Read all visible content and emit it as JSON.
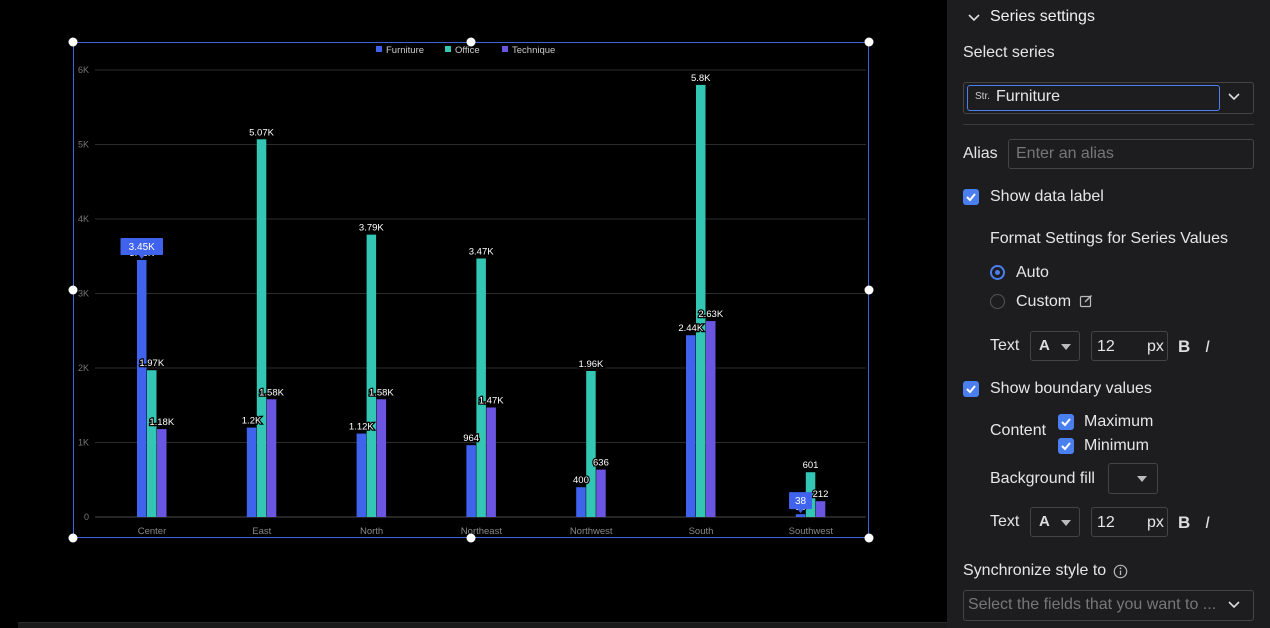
{
  "chart_data": {
    "type": "bar",
    "categories": [
      "Center",
      "East",
      "North",
      "Northeast",
      "Northwest",
      "South",
      "Southwest"
    ],
    "series": [
      {
        "name": "Furniture",
        "color": "#3f63ec",
        "values": [
          3450,
          1200,
          1120,
          964,
          400,
          2440,
          38
        ],
        "labels": [
          "3.45K",
          "1.2K",
          "1.12K",
          "964",
          "400",
          "2.44K",
          "38"
        ]
      },
      {
        "name": "Office",
        "color": "#34c6b4",
        "values": [
          1970,
          5070,
          3790,
          3470,
          1960,
          5800,
          601
        ],
        "labels": [
          "1.97K",
          "5.07K",
          "3.79K",
          "3.47K",
          "1.96K",
          "5.8K",
          "601"
        ]
      },
      {
        "name": "Technique",
        "color": "#6b56e4",
        "values": [
          1180,
          1580,
          1580,
          1470,
          636,
          2630,
          212
        ],
        "labels": [
          "1.18K",
          "1.58K",
          "1.58K",
          "1.47K",
          "636",
          "2.63K",
          "212"
        ]
      }
    ],
    "y_ticks": [
      "0",
      "1K",
      "2K",
      "3K",
      "4K",
      "5K",
      "6K"
    ],
    "ylim": [
      0,
      6000
    ],
    "legend_position": "top-center",
    "grid": true,
    "boundary_labels": {
      "max": "3.45K",
      "min": "38",
      "series": "Furniture"
    }
  },
  "panel": {
    "section_title": "Series settings",
    "select_series_label": "Select series",
    "series_type_tag": "Str.",
    "selected_series": "Furniture",
    "alias_label": "Alias",
    "alias_placeholder": "Enter an alias",
    "show_data_label": "Show data label",
    "format_title": "Format Settings for Series Values",
    "format_auto": "Auto",
    "format_custom": "Custom",
    "text_label": "Text",
    "font_glyph": "A",
    "font_size": "12",
    "unit": "px",
    "bold": "B",
    "italic": "I",
    "show_boundary": "Show boundary values",
    "content_label": "Content",
    "maximum": "Maximum",
    "minimum": "Minimum",
    "background_fill": "Background fill",
    "text_label_2": "Text",
    "font_glyph_2": "A",
    "font_size_2": "12",
    "unit_2": "px",
    "bold_2": "B",
    "italic_2": "I",
    "sync_label": "Synchronize style to",
    "sync_placeholder": "Select the fields that you want to ..."
  },
  "colors": {
    "accent": "#4a7ff0",
    "panel_bg": "#1d1d1f",
    "selection_border": "#3f63d8"
  }
}
